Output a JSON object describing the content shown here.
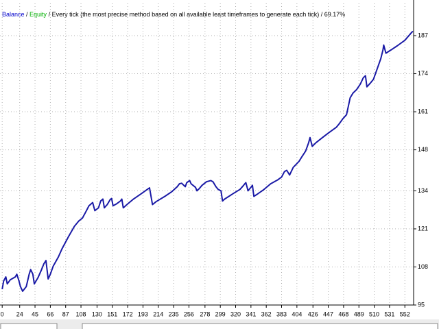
{
  "chart_data": {
    "type": "line",
    "caption": [
      {
        "text": "Balance",
        "color": "#0000cc"
      },
      {
        "text": " / ",
        "color": "#000000"
      },
      {
        "text": "Equity",
        "color": "#00b000"
      },
      {
        "text": " / Every tick (the most precise method based on all available least timeframes to generate each tick) / 69.17%",
        "color": "#000000"
      }
    ],
    "grid": true,
    "xlim": [
      -3,
      564
    ],
    "ylim": [
      95,
      198
    ],
    "xticks": [
      0,
      24,
      45,
      66,
      87,
      108,
      130,
      151,
      172,
      193,
      214,
      235,
      256,
      278,
      299,
      320,
      341,
      362,
      383,
      404,
      426,
      447,
      468,
      489,
      510,
      531,
      552
    ],
    "yticks": [
      95,
      108,
      121,
      134,
      148,
      161,
      174,
      187
    ],
    "series": [
      {
        "name": "Balance",
        "color": "#1a1aa6",
        "x": [
          0,
          2,
          5,
          7,
          11,
          18,
          20,
          23,
          25,
          28,
          33,
          37,
          39,
          42,
          44,
          49,
          54,
          57,
          60,
          63,
          66,
          70,
          77,
          82,
          91,
          99,
          105,
          110,
          115,
          119,
          124,
          127,
          132,
          135,
          138,
          140,
          144,
          148,
          150,
          152,
          157,
          162,
          164,
          166,
          171,
          180,
          190,
          199,
          202,
          206,
          211,
          223,
          232,
          240,
          243,
          246,
          251,
          253,
          257,
          259,
          265,
          267,
          270,
          274,
          280,
          286,
          289,
          293,
          296,
          300,
          302,
          305,
          317,
          326,
          331,
          334,
          337,
          341,
          343,
          345,
          350,
          359,
          368,
          378,
          383,
          387,
          390,
          394,
          399,
          407,
          411,
          416,
          420,
          422,
          425,
          430,
          439,
          448,
          458,
          462,
          467,
          472,
          477,
          481,
          486,
          491,
          495,
          498,
          500,
          505,
          509,
          514,
          519,
          522,
          523,
          526,
          533,
          542,
          552,
          561,
          563
        ],
        "values": [
          100.4,
          103.2,
          104.6,
          102.2,
          103.6,
          104.6,
          105.5,
          103.2,
          101.3,
          99.7,
          101.3,
          105.5,
          107.1,
          105.5,
          102.2,
          104.3,
          107.1,
          109.0,
          110.2,
          103.9,
          105.5,
          108.3,
          111.4,
          114.2,
          118.4,
          121.9,
          123.7,
          124.7,
          127.0,
          128.9,
          130.0,
          127.2,
          128.2,
          130.5,
          131.2,
          128.2,
          129.3,
          131.0,
          131.4,
          128.9,
          129.6,
          130.5,
          131.2,
          128.2,
          129.3,
          131.2,
          132.9,
          134.5,
          135.0,
          129.3,
          130.3,
          132.1,
          133.6,
          135.4,
          136.4,
          136.6,
          135.4,
          136.8,
          137.5,
          136.4,
          135.2,
          134.0,
          134.7,
          135.9,
          137.1,
          137.5,
          137.1,
          135.4,
          134.5,
          134.0,
          130.5,
          131.2,
          133.1,
          134.5,
          135.9,
          136.8,
          134.0,
          135.2,
          135.9,
          132.1,
          132.9,
          134.5,
          136.4,
          137.8,
          138.7,
          140.6,
          141.0,
          139.4,
          142.0,
          144.1,
          145.7,
          147.6,
          150.4,
          152.2,
          149.2,
          150.4,
          152.2,
          153.9,
          155.7,
          156.9,
          158.6,
          160.0,
          165.8,
          167.4,
          168.6,
          170.5,
          172.6,
          173.3,
          169.5,
          170.9,
          172.1,
          175.6,
          179.1,
          182.1,
          183.8,
          181.0,
          182.1,
          183.6,
          185.4,
          188.0,
          188.5
        ]
      }
    ]
  }
}
